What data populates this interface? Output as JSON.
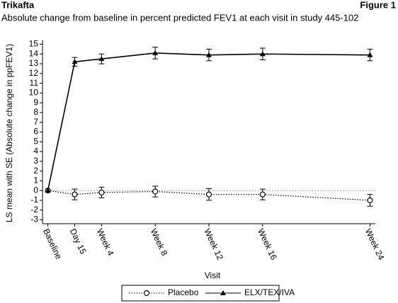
{
  "chart_data": {
    "type": "line",
    "header": "Trikafta",
    "figure_label": "Figure 1",
    "title": "Absolute change from baseline in percent predicted FEV1 at each visit in study 445-102",
    "x_label": "Visit",
    "y_label": "LS mean with SE (Absolute change in ppFEV1)",
    "x": [
      0,
      2,
      4,
      8,
      12,
      16,
      24
    ],
    "xlim": [
      -0.4,
      24.4
    ],
    "xticks": [
      {
        "value": 0,
        "label": "Baseline"
      },
      {
        "value": 2,
        "label": "Day 15"
      },
      {
        "value": 4,
        "label": "Week 4"
      },
      {
        "value": 8,
        "label": "Week 8"
      },
      {
        "value": 12,
        "label": "Week 12"
      },
      {
        "value": 16,
        "label": "Week 16"
      },
      {
        "value": 24,
        "label": "Week 24"
      }
    ],
    "ylim": [
      -3.4,
      15.4
    ],
    "yticks": [
      -3,
      -2,
      -1,
      0,
      1,
      2,
      3,
      4,
      5,
      6,
      7,
      8,
      9,
      10,
      11,
      12,
      13,
      14,
      15
    ],
    "reference_line": 0,
    "series": [
      {
        "name": "Placebo",
        "color": "#000000",
        "marker": "circle-open",
        "linestyle": "dotted",
        "values": [
          0,
          -0.4,
          -0.2,
          -0.1,
          -0.4,
          -0.4,
          -1.0
        ],
        "error": [
          null,
          0.55,
          0.55,
          0.55,
          0.6,
          0.55,
          0.6
        ]
      },
      {
        "name": "ELX/TEX/IVA",
        "color": "#000000",
        "marker": "triangle",
        "linestyle": "solid",
        "values": [
          0,
          13.2,
          13.5,
          14.1,
          13.9,
          14.0,
          13.9
        ],
        "error": [
          null,
          0.45,
          0.5,
          0.6,
          0.6,
          0.6,
          0.6
        ]
      }
    ],
    "legend": "bottom"
  }
}
